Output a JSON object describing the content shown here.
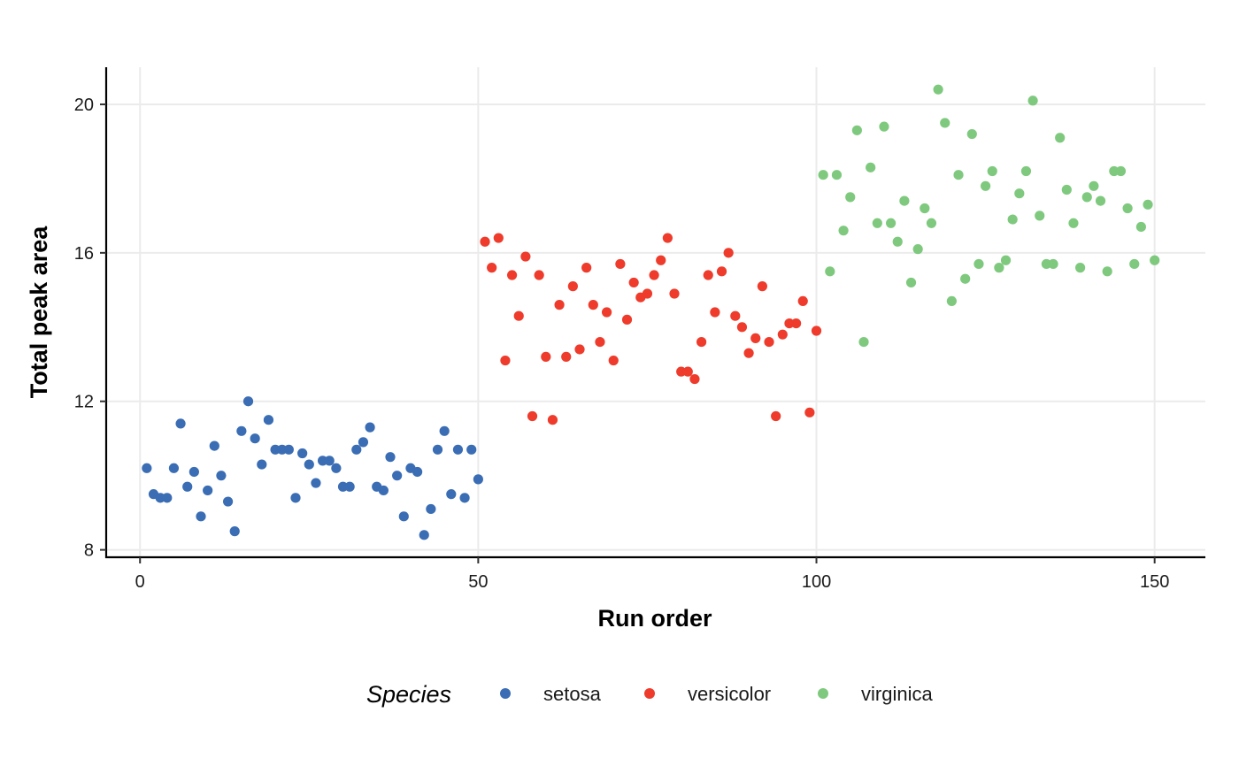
{
  "chart_data": {
    "type": "scatter",
    "title": "",
    "xlabel": "Run order",
    "ylabel": "Total peak area",
    "xlim": [
      -5,
      157.5
    ],
    "ylim": [
      7.8,
      21
    ],
    "xticks": [
      0,
      50,
      100,
      150
    ],
    "yticks": [
      8,
      12,
      16,
      20
    ],
    "grid": true,
    "legend": {
      "title": "Species",
      "placement": "bottom"
    },
    "series": [
      {
        "name": "setosa",
        "color": "#3a6db4",
        "x": [
          1,
          2,
          3,
          4,
          5,
          6,
          7,
          8,
          9,
          10,
          11,
          12,
          13,
          14,
          15,
          16,
          17,
          18,
          19,
          20,
          21,
          22,
          23,
          24,
          25,
          26,
          27,
          28,
          29,
          30,
          31,
          32,
          33,
          34,
          35,
          36,
          37,
          38,
          39,
          40,
          41,
          42,
          43,
          44,
          45,
          46,
          47,
          48,
          49,
          50
        ],
        "y": [
          10.2,
          9.5,
          9.4,
          9.4,
          10.2,
          11.4,
          9.7,
          10.1,
          8.9,
          9.6,
          10.8,
          10.0,
          9.3,
          8.5,
          11.2,
          12.0,
          11.0,
          10.3,
          11.5,
          10.7,
          10.7,
          10.7,
          9.4,
          10.6,
          10.3,
          9.8,
          10.4,
          10.4,
          10.2,
          9.7,
          9.7,
          10.7,
          10.9,
          11.3,
          9.7,
          9.6,
          10.5,
          10.0,
          8.9,
          10.2,
          10.1,
          8.4,
          9.1,
          10.7,
          11.2,
          9.5,
          10.7,
          9.4,
          10.7,
          9.9
        ]
      },
      {
        "name": "versicolor",
        "color": "#ee3b2b",
        "x": [
          51,
          52,
          53,
          54,
          55,
          56,
          57,
          58,
          59,
          60,
          61,
          62,
          63,
          64,
          65,
          66,
          67,
          68,
          69,
          70,
          71,
          72,
          73,
          74,
          75,
          76,
          77,
          78,
          79,
          80,
          81,
          82,
          83,
          84,
          85,
          86,
          87,
          88,
          89,
          90,
          91,
          92,
          93,
          94,
          95,
          96,
          97,
          98,
          99,
          100
        ],
        "y": [
          16.3,
          15.6,
          16.4,
          13.1,
          15.4,
          14.3,
          15.9,
          11.6,
          15.4,
          13.2,
          11.5,
          14.6,
          13.2,
          15.1,
          13.4,
          15.6,
          14.6,
          13.6,
          14.4,
          13.1,
          15.7,
          14.2,
          15.2,
          14.8,
          14.9,
          15.4,
          15.8,
          16.4,
          14.9,
          12.8,
          12.8,
          12.6,
          13.6,
          15.4,
          14.4,
          15.5,
          16.0,
          14.3,
          14.0,
          13.3,
          13.7,
          15.1,
          13.6,
          11.6,
          13.8,
          14.1,
          14.1,
          14.7,
          11.7,
          13.9
        ]
      },
      {
        "name": "virginica",
        "color": "#7fc97f",
        "x": [
          101,
          102,
          103,
          104,
          105,
          106,
          107,
          108,
          109,
          110,
          111,
          112,
          113,
          114,
          115,
          116,
          117,
          118,
          119,
          120,
          121,
          122,
          123,
          124,
          125,
          126,
          127,
          128,
          129,
          130,
          131,
          132,
          133,
          134,
          135,
          136,
          137,
          138,
          139,
          140,
          141,
          142,
          143,
          144,
          145,
          146,
          147,
          148,
          149,
          150
        ],
        "y": [
          18.1,
          15.5,
          18.1,
          16.6,
          17.5,
          19.3,
          13.6,
          18.3,
          16.8,
          19.4,
          16.8,
          16.3,
          17.4,
          15.2,
          16.1,
          17.2,
          16.8,
          20.4,
          19.5,
          14.7,
          18.1,
          15.3,
          19.2,
          15.7,
          17.8,
          18.2,
          15.6,
          15.8,
          16.9,
          17.6,
          18.2,
          20.1,
          17.0,
          15.7,
          15.7,
          19.1,
          17.7,
          16.8,
          15.6,
          17.5,
          17.8,
          17.4,
          15.5,
          18.2,
          18.2,
          17.2,
          15.7,
          16.7,
          17.3,
          15.8
        ]
      }
    ]
  }
}
